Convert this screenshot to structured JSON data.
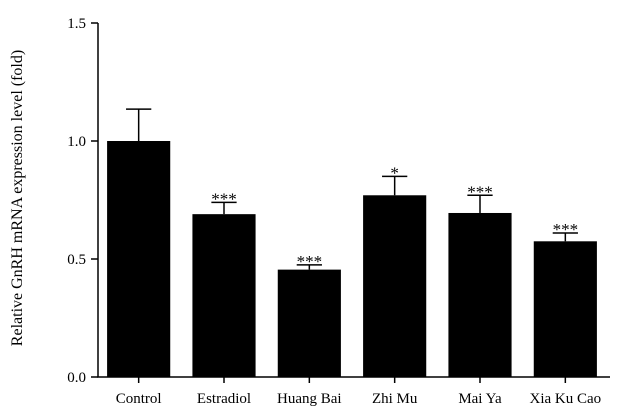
{
  "chart_data": {
    "type": "bar",
    "title": "",
    "xlabel": "",
    "ylabel": "Relative GnRH mRNA expression level (fold)",
    "ylim": [
      0,
      1.5
    ],
    "yticks": [
      0.0,
      0.5,
      1.0,
      1.5
    ],
    "ytick_labels": [
      "0.0",
      "0.5",
      "1.0",
      "1.5"
    ],
    "categories": [
      "Control",
      "Estradiol",
      "Huang Bai",
      "Zhi Mu",
      "Mai Ya",
      "Xia Ku Cao"
    ],
    "values": [
      1.0,
      0.69,
      0.455,
      0.77,
      0.695,
      0.575
    ],
    "errors": [
      0.135,
      0.05,
      0.02,
      0.08,
      0.075,
      0.035
    ],
    "significance": [
      "",
      "***",
      "***",
      "*",
      "***",
      "***"
    ],
    "bar_color": "#000000",
    "grid": false,
    "legend": "none"
  }
}
